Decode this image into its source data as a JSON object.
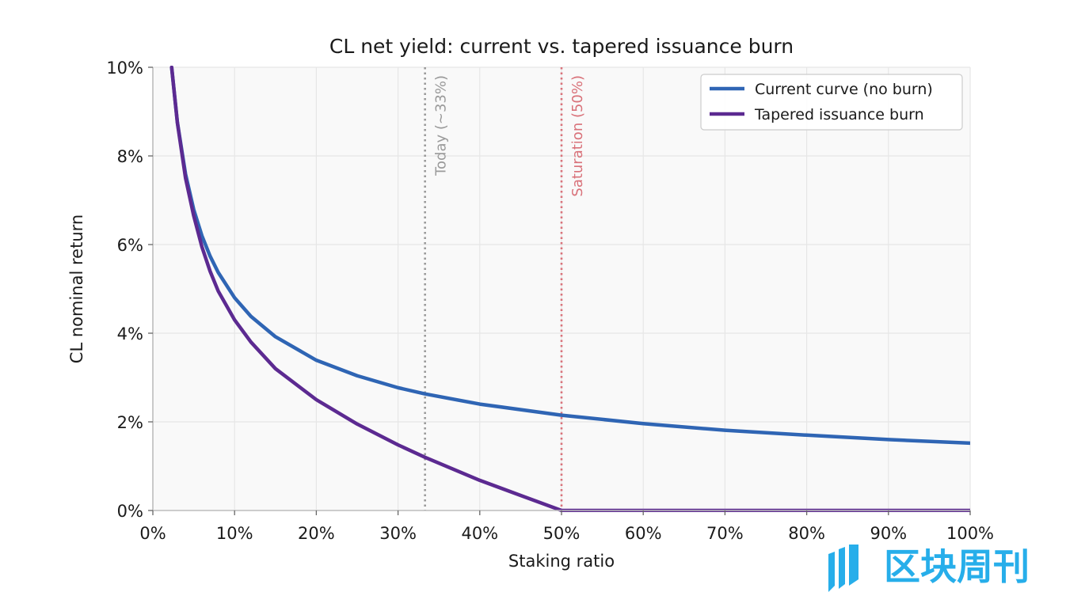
{
  "chart_data": {
    "type": "line",
    "title": "CL net yield: current vs. tapered issuance burn",
    "xlabel": "Staking ratio",
    "ylabel": "CL nominal return",
    "xlim": [
      0,
      100
    ],
    "ylim": [
      0,
      10
    ],
    "x_ticks": [
      0,
      10,
      20,
      30,
      40,
      50,
      60,
      70,
      80,
      90,
      100
    ],
    "x_tick_labels": [
      "0%",
      "10%",
      "20%",
      "30%",
      "40%",
      "50%",
      "60%",
      "70%",
      "80%",
      "90%",
      "100%"
    ],
    "y_ticks": [
      0,
      2,
      4,
      6,
      8,
      10
    ],
    "y_tick_labels": [
      "0%",
      "2%",
      "4%",
      "6%",
      "8%",
      "10%"
    ],
    "grid": true,
    "legend_position": "top-right",
    "series": [
      {
        "name": "Current curve (no burn)",
        "color": "#2f65b4",
        "x": [
          2.3,
          3,
          4,
          5,
          6,
          7,
          8,
          10,
          12,
          15,
          20,
          25,
          30,
          33.3,
          40,
          50,
          60,
          70,
          80,
          90,
          100
        ],
        "y": [
          10.0,
          8.76,
          7.59,
          6.79,
          6.2,
          5.74,
          5.37,
          4.8,
          4.38,
          3.92,
          3.39,
          3.04,
          2.77,
          2.63,
          2.4,
          2.15,
          1.96,
          1.81,
          1.7,
          1.6,
          1.52
        ]
      },
      {
        "name": "Tapered issuance burn",
        "color": "#5c2a91",
        "x": [
          2.3,
          3,
          4,
          5,
          6,
          7,
          8,
          10,
          12,
          15,
          20,
          25,
          30,
          33.3,
          40,
          45,
          50,
          60,
          70,
          80,
          90,
          100
        ],
        "y": [
          10.0,
          8.75,
          7.5,
          6.65,
          5.95,
          5.4,
          4.95,
          4.3,
          3.8,
          3.2,
          2.5,
          1.95,
          1.48,
          1.2,
          0.68,
          0.34,
          0.0,
          0.0,
          0.0,
          0.0,
          0.0,
          0.0
        ]
      }
    ],
    "reference_lines": [
      {
        "x": 33.3,
        "label": "Today (~33%)",
        "color": "#9a9a9a"
      },
      {
        "x": 50,
        "label": "Saturation (50%)",
        "color": "#d9727a"
      }
    ]
  },
  "watermark": {
    "text": "区块周刊",
    "color": "#27aeea"
  }
}
